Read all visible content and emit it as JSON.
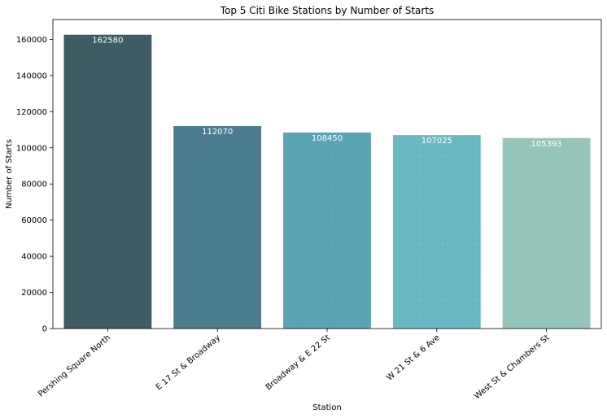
{
  "chart_data": {
    "type": "bar",
    "title": "Top 5 Citi Bike Stations by Number of Starts",
    "xlabel": "Station",
    "ylabel": "Number of Starts",
    "categories": [
      "Pershing Square North",
      "E 17 St & Broadway",
      "Broadway & E 22 St",
      "W 21 St & 6 Ave",
      "West St & Chambers St"
    ],
    "values": [
      162580,
      112070,
      108450,
      107025,
      105393
    ],
    "value_labels": [
      "162580",
      "112070",
      "108450",
      "107025",
      "105393"
    ],
    "bar_colors": [
      "#3e5b66",
      "#4b7c8f",
      "#5aa5b6",
      "#6cbac6",
      "#96c5bb"
    ],
    "ylim": [
      0,
      171000
    ],
    "yticks": [
      0,
      20000,
      40000,
      60000,
      80000,
      100000,
      120000,
      140000,
      160000
    ],
    "ytick_labels": [
      "0",
      "20000",
      "40000",
      "60000",
      "80000",
      "100000",
      "120000",
      "140000",
      "160000"
    ],
    "grid": false,
    "legend": "none"
  }
}
